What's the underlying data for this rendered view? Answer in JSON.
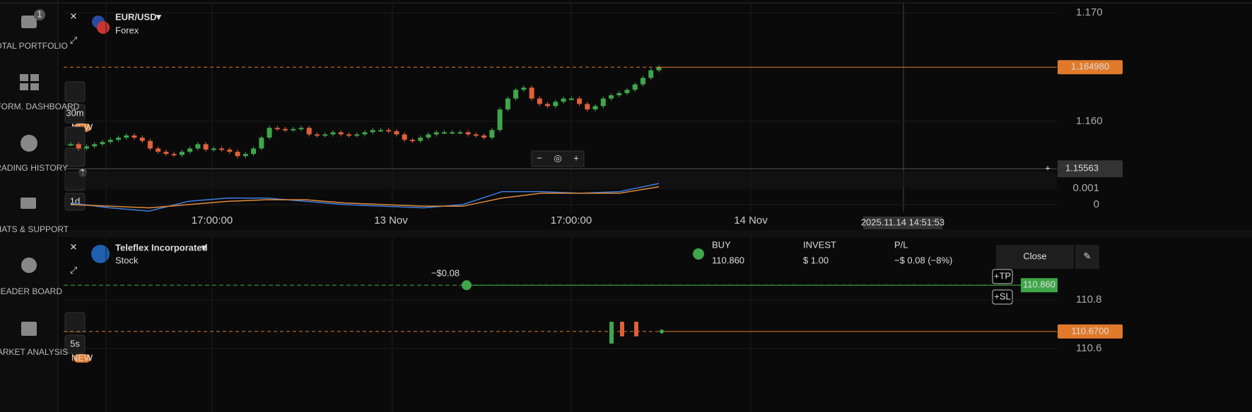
{
  "sidebar": {
    "portfolio_badge": "1",
    "items": [
      "TOTAL PORTFOLIO",
      "PERFORM. DASHBOARD",
      "TRADING HISTORY",
      "CHATS & SUPPORT",
      "LEADER BOARD",
      "MARKET ANALYSIS"
    ]
  },
  "top_chart": {
    "symbol": "EUR/USD",
    "market": "Forex",
    "timeframe": "30m",
    "indicator_timeframe": "1d",
    "new_badge": "NEW",
    "indicator_badge": "1",
    "price_ticks": [
      {
        "value": 1.17,
        "label": "1.170"
      },
      {
        "value": 1.16,
        "label": "1.160"
      }
    ],
    "current_price": {
      "value": 1.16498,
      "label": "1.164980"
    },
    "crosshair_price": 1.15563,
    "indicator_ticks": [
      0.001,
      0
    ],
    "x_labels": [
      "17:00:00",
      "13 Nov",
      "17:00:00",
      "14 Nov"
    ],
    "crosshair_time": "2025.11.14 14:51:53",
    "candles_close": [
      1.1579,
      1.1575,
      1.1577,
      1.1579,
      1.1581,
      1.1583,
      1.1585,
      1.1587,
      1.1585,
      1.1582,
      1.1575,
      1.1572,
      1.157,
      1.1569,
      1.1572,
      1.1575,
      1.1579,
      1.1574,
      1.1575,
      1.1574,
      1.1572,
      1.1568,
      1.157,
      1.1575,
      1.1585,
      1.1594,
      1.1593,
      1.1592,
      1.1593,
      1.1594,
      1.1588,
      1.1587,
      1.1588,
      1.159,
      1.1588,
      1.1587,
      1.1588,
      1.159,
      1.1592,
      1.1592,
      1.1591,
      1.1588,
      1.1583,
      1.1582,
      1.1585,
      1.1588,
      1.159,
      1.159,
      1.159,
      1.159,
      1.1588,
      1.1587,
      1.1585,
      1.1592,
      1.1611,
      1.1621,
      1.1629,
      1.1631,
      1.1621,
      1.1616,
      1.1614,
      1.1618,
      1.1621,
      1.1621,
      1.1616,
      1.1611,
      1.1614,
      1.1621,
      1.1624,
      1.1626,
      1.1629,
      1.1634,
      1.164,
      1.1647,
      1.165
    ],
    "macd": [
      0.0001,
      -0.0002,
      -0.0004,
      0.0002,
      0.0004,
      0.0004,
      0.0002,
      0,
      -0.0001,
      -0.0002,
      0,
      0.0008,
      0.0008,
      0.0007,
      0.0008,
      0.0013
    ],
    "signal": [
      0,
      -0.0001,
      -0.0002,
      0,
      0.0002,
      0.0003,
      0.0003,
      0.0001,
      0,
      -0.0001,
      -0.0001,
      0.0004,
      0.0007,
      0.0007,
      0.0007,
      0.0011
    ]
  },
  "bottom_chart": {
    "symbol": "Teleflex Incorporated",
    "market": "Stock",
    "timeframe": "5s",
    "new_badge": "NEW",
    "price_ticks": [
      110.8,
      110.6
    ],
    "entry_price": {
      "value": 110.86,
      "label": "110.860"
    },
    "current_price": {
      "value": 110.67,
      "label": "110.6700"
    },
    "candles_open": [
      110.62,
      110.71,
      110.71
    ],
    "candles_close": [
      110.71,
      110.65,
      110.65
    ],
    "pl_marker": "−$0.08"
  },
  "position": {
    "direction": "BUY",
    "price": "110.860",
    "invest_label": "INVEST",
    "invest": "$ 1.00",
    "pl_label": "P/L",
    "pl": "−$ 0.08 (−8%)",
    "close": "Close",
    "tp": "+TP",
    "sl": "+SL"
  }
}
